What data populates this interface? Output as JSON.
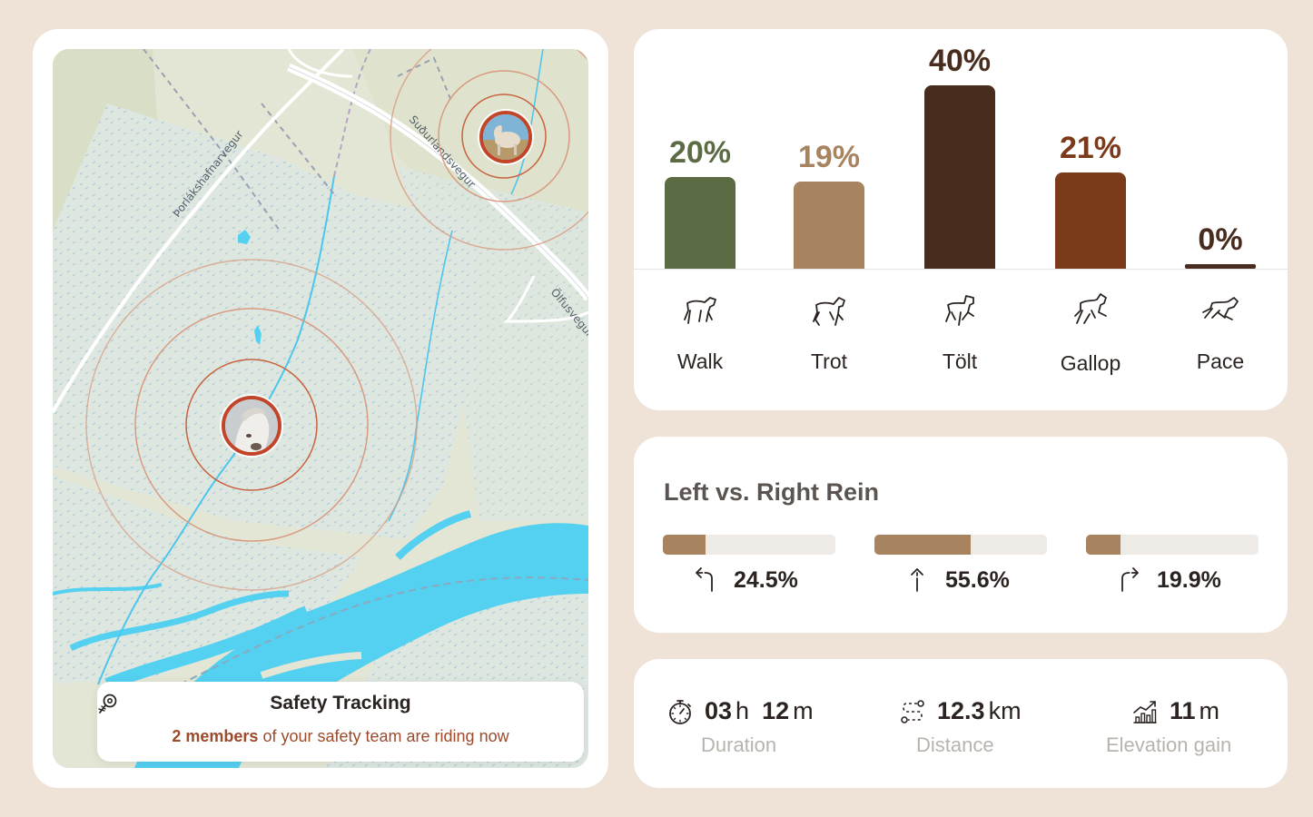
{
  "map": {
    "roads": [
      "Þorlákshafnarvegur",
      "Suðurlandsvegur",
      "Ölfusvegur"
    ],
    "safety": {
      "icon": "map-pin-compass-icon",
      "title": "Safety Tracking",
      "highlight": "2 members",
      "rest": " of your safety team are riding now"
    }
  },
  "gaits": [
    {
      "label": "Walk",
      "percent": 20,
      "percent_text": "20%",
      "color": "#5b6b44",
      "icon": "horse-walk-icon"
    },
    {
      "label": "Trot",
      "percent": 19,
      "percent_text": "19%",
      "color": "#a8835f",
      "icon": "horse-trot-icon"
    },
    {
      "label": "Tölt",
      "percent": 40,
      "percent_text": "40%",
      "color": "#482c1e",
      "icon": "horse-tolt-icon"
    },
    {
      "label": "Gallop",
      "percent": 21,
      "percent_text": "21%",
      "color": "#7b3a1a",
      "icon": "horse-gallop-icon"
    },
    {
      "label": "Pace",
      "percent": 0,
      "percent_text": "0%",
      "color": "#482c1e",
      "icon": "horse-pace-icon"
    }
  ],
  "rein": {
    "title": "Left vs. Right Rein",
    "items": [
      {
        "icon": "turn-left-arrow-icon",
        "value": "24.5%",
        "fraction": 0.245
      },
      {
        "icon": "straight-up-arrow-icon",
        "value": "55.6%",
        "fraction": 0.556
      },
      {
        "icon": "turn-right-arrow-icon",
        "value": "19.9%",
        "fraction": 0.199
      }
    ]
  },
  "stats": {
    "duration": {
      "icon": "stopwatch-icon",
      "hours": "03",
      "hours_unit": "h",
      "minutes": "12",
      "minutes_unit": "m",
      "label": "Duration"
    },
    "distance": {
      "icon": "route-icon",
      "value": "12.3",
      "unit": "km",
      "label": "Distance"
    },
    "elevation": {
      "icon": "elevation-chart-icon",
      "value": "11",
      "unit": "m",
      "label": "Elevation gain"
    }
  }
}
